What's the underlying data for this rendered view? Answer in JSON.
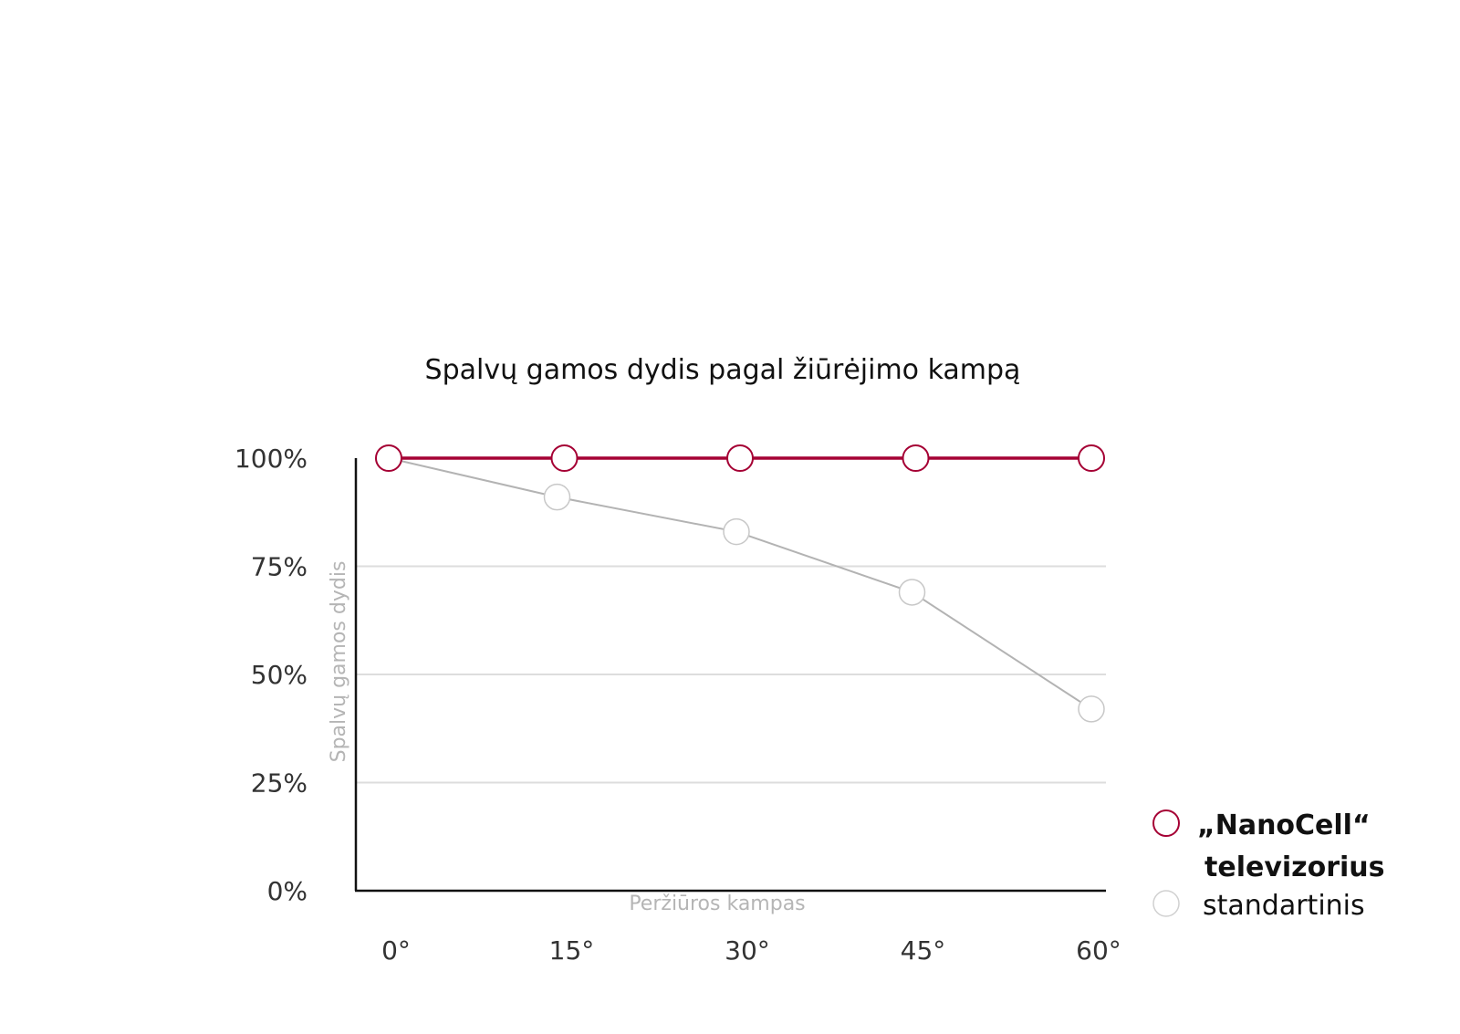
{
  "chart_data": {
    "type": "line",
    "title": "Spalvų gamos dydis pagal žiūrėjimo kampą",
    "xlabel": "Peržiūros kampas",
    "ylabel": "Spalvų gamos dydis",
    "categories": [
      "0°",
      "15°",
      "30°",
      "45°",
      "60°"
    ],
    "yticks": [
      "0%",
      "25%",
      "50%",
      "75%",
      "100%"
    ],
    "ylim": [
      0,
      100
    ],
    "grid": true,
    "legend_position": "bottom-right",
    "series": [
      {
        "name_lines": [
          "„NanoCell“",
          "televizorius"
        ],
        "values": [
          100,
          100,
          100,
          100,
          100
        ],
        "color": "#a50034"
      },
      {
        "name_lines": [
          "standartinis"
        ],
        "values": [
          100,
          91,
          83,
          69,
          42
        ],
        "color": "#b3b3b3"
      }
    ]
  }
}
